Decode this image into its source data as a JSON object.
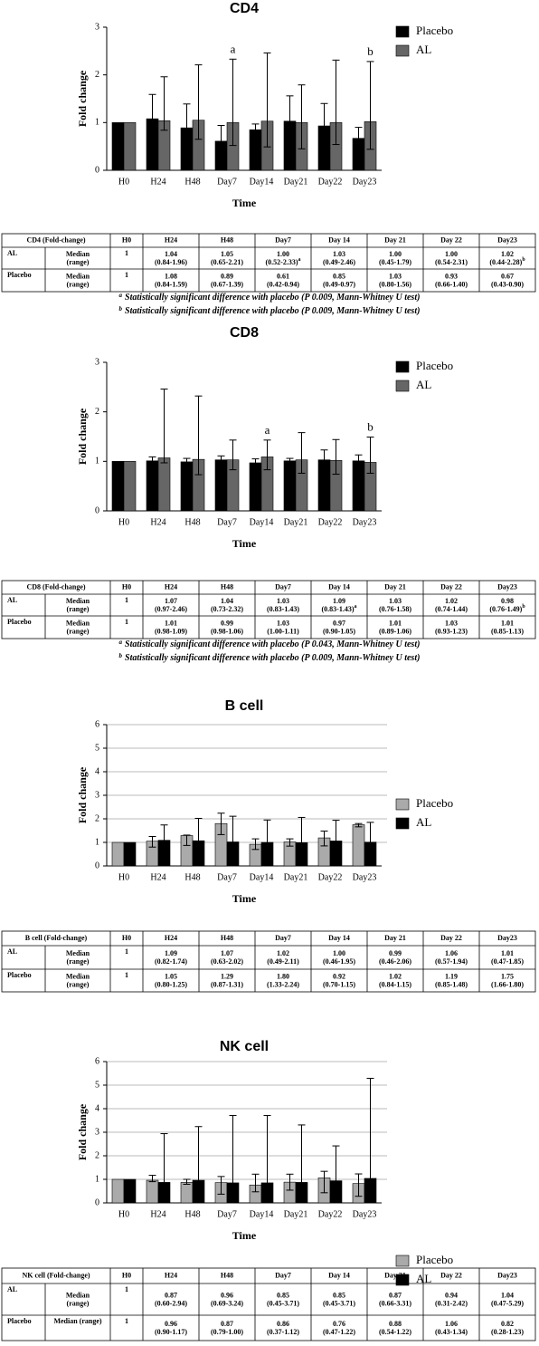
{
  "chart_data": [
    {
      "type": "bar",
      "title": "CD4",
      "ylabel": "Fold change",
      "xlabel": "Time",
      "categories": [
        "H0",
        "H24",
        "H48",
        "Day7",
        "Day14",
        "Day21",
        "Day22",
        "Day23"
      ],
      "series": [
        {
          "name": "Placebo",
          "color": "#000000",
          "values": [
            1,
            1.08,
            0.89,
            0.61,
            0.85,
            1.03,
            0.93,
            0.67
          ],
          "lows": [
            null,
            0.84,
            0.67,
            0.42,
            0.49,
            0.8,
            0.66,
            0.43
          ],
          "highs": [
            null,
            1.59,
            1.39,
            0.94,
            0.97,
            1.56,
            1.4,
            0.9
          ]
        },
        {
          "name": "AL",
          "color": "#666666",
          "values": [
            1,
            1.04,
            1.05,
            1.0,
            1.03,
            1.0,
            1.0,
            1.02
          ],
          "lows": [
            null,
            0.84,
            0.65,
            0.52,
            0.49,
            0.45,
            0.54,
            0.44
          ],
          "highs": [
            null,
            1.96,
            2.21,
            2.33,
            2.46,
            1.79,
            2.31,
            2.28
          ]
        }
      ],
      "annotations": [
        {
          "text": "a",
          "category": "Day7"
        },
        {
          "text": "b",
          "category": "Day23"
        }
      ],
      "ylim": [
        0,
        3
      ],
      "yticks": [
        0,
        1,
        2,
        3
      ],
      "grid": false,
      "legend_position": "upper right"
    },
    {
      "type": "bar",
      "title": "CD8",
      "ylabel": "Fold change",
      "xlabel": "Time",
      "categories": [
        "H0",
        "H24",
        "H48",
        "Day7",
        "Day14",
        "Day21",
        "Day22",
        "Day23"
      ],
      "series": [
        {
          "name": "Placebo",
          "color": "#000000",
          "values": [
            1,
            1.01,
            0.99,
            1.03,
            0.97,
            1.01,
            1.03,
            1.01
          ],
          "lows": [
            null,
            0.98,
            0.98,
            1.0,
            0.9,
            0.89,
            0.93,
            0.85
          ],
          "highs": [
            null,
            1.09,
            1.06,
            1.11,
            1.05,
            1.06,
            1.23,
            1.13
          ]
        },
        {
          "name": "AL",
          "color": "#666666",
          "values": [
            1,
            1.07,
            1.04,
            1.03,
            1.09,
            1.03,
            1.02,
            0.98
          ],
          "lows": [
            null,
            0.97,
            0.73,
            0.83,
            0.83,
            0.76,
            0.74,
            0.76
          ],
          "highs": [
            null,
            2.46,
            2.32,
            1.43,
            1.43,
            1.58,
            1.44,
            1.49
          ]
        }
      ],
      "annotations": [
        {
          "text": "a",
          "category": "Day14"
        },
        {
          "text": "b",
          "category": "Day23"
        }
      ],
      "ylim": [
        0,
        3
      ],
      "yticks": [
        0,
        1,
        2,
        3
      ],
      "grid": false,
      "legend_position": "upper right"
    },
    {
      "type": "bar",
      "title": "B cell",
      "ylabel": "Fold change",
      "xlabel": "Time",
      "categories": [
        "H0",
        "H24",
        "H48",
        "Day7",
        "Day14",
        "Day21",
        "Day22",
        "Day23"
      ],
      "series": [
        {
          "name": "Placebo",
          "color": "#aaaaaa",
          "values": [
            1,
            1.05,
            1.29,
            1.8,
            0.92,
            1.02,
            1.19,
            1.75
          ],
          "lows": [
            null,
            0.8,
            0.87,
            1.33,
            0.7,
            0.84,
            0.85,
            1.66
          ],
          "highs": [
            null,
            1.25,
            1.31,
            2.24,
            1.15,
            1.15,
            1.48,
            1.8
          ]
        },
        {
          "name": "AL",
          "color": "#000000",
          "values": [
            1,
            1.09,
            1.07,
            1.02,
            1.0,
            0.99,
            1.06,
            1.01
          ],
          "lows": [
            null,
            0.82,
            0.63,
            0.49,
            0.46,
            0.46,
            0.57,
            0.47
          ],
          "highs": [
            null,
            1.74,
            2.02,
            2.11,
            1.95,
            2.06,
            1.94,
            1.85
          ]
        }
      ],
      "ylim": [
        0,
        6
      ],
      "yticks": [
        0,
        1,
        2,
        3,
        4,
        5,
        6
      ],
      "grid": true,
      "legend_position": "center right"
    },
    {
      "type": "bar",
      "title": "NK cell",
      "ylabel": "Fold change",
      "xlabel": "Time",
      "categories": [
        "H0",
        "H24",
        "H48",
        "Day7",
        "Day14",
        "Day21",
        "Day22",
        "Day23"
      ],
      "series": [
        {
          "name": "Placebo",
          "color": "#aaaaaa",
          "values": [
            1,
            0.96,
            0.87,
            0.86,
            0.76,
            0.88,
            1.06,
            0.82
          ],
          "lows": [
            null,
            0.9,
            0.79,
            0.37,
            0.47,
            0.54,
            0.43,
            0.28
          ],
          "highs": [
            null,
            1.17,
            1.0,
            1.12,
            1.22,
            1.22,
            1.34,
            1.23
          ]
        },
        {
          "name": "AL",
          "color": "#000000",
          "values": [
            1,
            0.87,
            0.96,
            0.85,
            0.85,
            0.87,
            0.94,
            1.04
          ],
          "lows": [
            null,
            0.6,
            0.69,
            0.45,
            0.45,
            0.66,
            0.31,
            0.47
          ],
          "highs": [
            null,
            2.94,
            3.24,
            3.71,
            3.71,
            3.31,
            2.42,
            5.29
          ]
        }
      ],
      "ylim": [
        0,
        6
      ],
      "yticks": [
        0,
        1,
        2,
        3,
        4,
        5,
        6
      ],
      "grid": true,
      "legend_position": "center right"
    }
  ],
  "tables": [
    {
      "header": [
        "CD4 (Fold-change)",
        "H0",
        "H24",
        "H48",
        "Day7",
        "Day 14",
        "Day 21",
        "Day 22",
        "Day23"
      ],
      "rows": [
        {
          "group": "AL",
          "label": [
            "Median",
            "(range)"
          ],
          "cells": [
            {
              "median": "1"
            },
            {
              "median": "1.04",
              "range": "(0.84-1.96)"
            },
            {
              "median": "1.05",
              "range": "(0.65-2.21)"
            },
            {
              "median": "1.00",
              "range": "(0.52-2.33)",
              "sup": "a"
            },
            {
              "median": "1.03",
              "range": "(0.49-2.46)"
            },
            {
              "median": "1.00",
              "range": "(0.45-1.79)"
            },
            {
              "median": "1.00",
              "range": "(0.54-2.31)"
            },
            {
              "median": "1.02",
              "range": "(0.44-2.28)",
              "sup": "b"
            }
          ]
        },
        {
          "group": "Placebo",
          "label": [
            "Median",
            "(range)"
          ],
          "cells": [
            {
              "median": "1"
            },
            {
              "median": "1.08",
              "range": "(0.84-1.59)"
            },
            {
              "median": "0.89",
              "range": "(0.67-1.39)"
            },
            {
              "median": "0.61",
              "range": "(0.42-0.94)"
            },
            {
              "median": "0.85",
              "range": "(0.49-0.97)"
            },
            {
              "median": "1.03",
              "range": "(0.80-1.56)"
            },
            {
              "median": "0.93",
              "range": "(0.66-1.40)"
            },
            {
              "median": "0.67",
              "range": "(0.43-0.90)"
            }
          ]
        }
      ],
      "footnotes": [
        {
          "mark": "a",
          "text": "Statistically significant difference with placebo (P 0.009, Mann-Whitney U test)"
        },
        {
          "mark": "b",
          "text": "Statistically significant difference with placebo (P 0.009, Mann-Whitney U test)"
        }
      ]
    },
    {
      "header": [
        "CD8 (Fold-change)",
        "H0",
        "H24",
        "H48",
        "Day7",
        "Day 14",
        "Day 21",
        "Day 22",
        "Day23"
      ],
      "rows": [
        {
          "group": "AL",
          "label": [
            "Median",
            "(range)"
          ],
          "cells": [
            {
              "median": "1"
            },
            {
              "median": "1.07",
              "range": "(0.97-2.46)"
            },
            {
              "median": "1.04",
              "range": "(0.73-2.32)"
            },
            {
              "median": "1.03",
              "range": "(0.83-1.43)"
            },
            {
              "median": "1.09",
              "range": "(0.83-1.43)",
              "sup": "a"
            },
            {
              "median": "1.03",
              "range": "(0.76-1.58)"
            },
            {
              "median": "1.02",
              "range": "(0.74-1.44)"
            },
            {
              "median": "0.98",
              "range": "(0.76-1.49)",
              "sup": "b"
            }
          ]
        },
        {
          "group": "Placebo",
          "label": [
            "Median",
            "(range)"
          ],
          "cells": [
            {
              "median": "1"
            },
            {
              "median": "1.01",
              "range": "(0.98-1.09)"
            },
            {
              "median": "0.99",
              "range": "(0.98-1.06)"
            },
            {
              "median": "1.03",
              "range": "(1.00-1.11)"
            },
            {
              "median": "0.97",
              "range": "(0.90-1.05)"
            },
            {
              "median": "1.01",
              "range": "(0.89-1.06)"
            },
            {
              "median": "1.03",
              "range": "(0.93-1.23)"
            },
            {
              "median": "1.01",
              "range": "(0.85-1.13)"
            }
          ]
        }
      ],
      "footnotes": [
        {
          "mark": "a",
          "text": "Statistically significant difference with placebo (P 0.043, Mann-Whitney U test)"
        },
        {
          "mark": "b",
          "text": "Statistically significant difference with placebo (P 0.009, Mann-Whitney U test)"
        }
      ]
    },
    {
      "header": [
        "B cell (Fold-change)",
        "H0",
        "H24",
        "H48",
        "Day7",
        "Day 14",
        "Day 21",
        "Day 22",
        "Day23"
      ],
      "rows": [
        {
          "group": "AL",
          "label": [
            "Median",
            "(range)"
          ],
          "cells": [
            {
              "median": "1"
            },
            {
              "median": "1.09",
              "range": "(0.82-1.74)"
            },
            {
              "median": "1.07",
              "range": "(0.63-2.02)"
            },
            {
              "median": "1.02",
              "range": "(0.49-2.11)"
            },
            {
              "median": "1.00",
              "range": "(0.46-1.95)"
            },
            {
              "median": "0.99",
              "range": "(0.46-2.06)"
            },
            {
              "median": "1.06",
              "range": "(0.57-1.94)"
            },
            {
              "median": "1.01",
              "range": "(0.47-1.85)"
            }
          ]
        },
        {
          "group": "Placebo",
          "label": [
            "Median",
            "(range)"
          ],
          "cells": [
            {
              "median": "1"
            },
            {
              "median": "1.05",
              "range": "(0.80-1.25)"
            },
            {
              "median": "1.29",
              "range": "(0.87-1.31)"
            },
            {
              "median": "1.80",
              "range": "(1.33-2.24)"
            },
            {
              "median": "0.92",
              "range": "(0.70-1.15)"
            },
            {
              "median": "1.02",
              "range": "(0.84-1.15)"
            },
            {
              "median": "1.19",
              "range": "(0.85-1.48)"
            },
            {
              "median": "1.75",
              "range": "(1.66-1.80)"
            }
          ]
        }
      ]
    },
    {
      "header": [
        "NK cell (Fold-change)",
        "H0",
        "H24",
        "H48",
        "Day7",
        "Day 14",
        "Day 21",
        "Day 22",
        "Day23"
      ],
      "rows": [
        {
          "group": "AL",
          "label": [
            "Median",
            "(range)"
          ],
          "cells": [
            {
              "median": "1"
            },
            {
              "median": "0.87",
              "range": "(0.60-2.94)"
            },
            {
              "median": "0.96",
              "range": "(0.69-3.24)"
            },
            {
              "median": "0.85",
              "range": "(0.45-3.71)"
            },
            {
              "median": "0.85",
              "range": "(0.45-3.71)"
            },
            {
              "median": "0.87",
              "range": "(0.66-3.31)"
            },
            {
              "median": "0.94",
              "range": "(0.31-2.42)"
            },
            {
              "median": "1.04",
              "range": "(0.47-5.29)"
            }
          ]
        },
        {
          "group": "Placebo",
          "label": [
            "Median (range)"
          ],
          "cells": [
            {
              "median": "1"
            },
            {
              "median": "0.96",
              "range": "(0.90-1.17)"
            },
            {
              "median": "0.87",
              "range": "(0.79-1.00)"
            },
            {
              "median": "0.86",
              "range": "(0.37-1.12)"
            },
            {
              "median": "0.76",
              "range": "(0.47-1.22)"
            },
            {
              "median": "0.88",
              "range": "(0.54-1.22)"
            },
            {
              "median": "1.06",
              "range": "(0.43-1.34)"
            },
            {
              "median": "0.82",
              "range": "(0.28-1.23)"
            }
          ]
        }
      ]
    }
  ]
}
